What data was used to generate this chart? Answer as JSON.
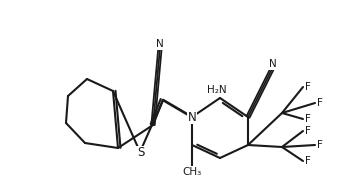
{
  "bg_color": "#ffffff",
  "line_color": "#1a1a1a",
  "line_width": 1.5,
  "font_size": 7.5,
  "font_family": "Arial",
  "figsize": [
    3.49,
    1.91
  ],
  "dpi": 100,
  "atoms": {
    "S_label": "S",
    "N_label": "N",
    "H2N_label": "H₂N",
    "CN_N_label": "N",
    "CH3_label": "CH₃",
    "F_label": "F"
  }
}
